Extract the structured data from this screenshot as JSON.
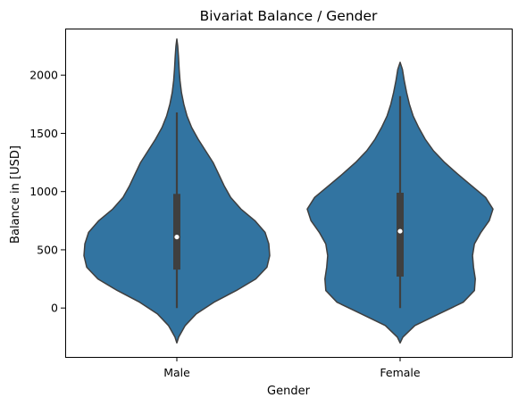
{
  "chart_data": {
    "type": "violin",
    "title": "Bivariat Balance / Gender",
    "xlabel": "Gender",
    "ylabel": "Balance in [USD]",
    "ylim": [
      -420,
      2400
    ],
    "yticks": [
      0,
      500,
      1000,
      1500,
      2000
    ],
    "grid": false,
    "categories": [
      "Male",
      "Female"
    ],
    "fill_color": "#3274a1",
    "edge_color": "#3f3f3f",
    "violins": [
      {
        "category": "Male",
        "min": 0,
        "q1": 330,
        "median": 610,
        "q3": 980,
        "max": 1680,
        "density_extent": [
          -300,
          2310
        ],
        "density_profile": [
          [
            -300,
            0.0
          ],
          [
            -250,
            0.02
          ],
          [
            -150,
            0.09
          ],
          [
            -50,
            0.21
          ],
          [
            50,
            0.4
          ],
          [
            150,
            0.64
          ],
          [
            250,
            0.85
          ],
          [
            350,
            0.97
          ],
          [
            450,
            1.0
          ],
          [
            550,
            0.99
          ],
          [
            650,
            0.95
          ],
          [
            750,
            0.84
          ],
          [
            850,
            0.69
          ],
          [
            950,
            0.58
          ],
          [
            1050,
            0.51
          ],
          [
            1150,
            0.45
          ],
          [
            1250,
            0.39
          ],
          [
            1350,
            0.31
          ],
          [
            1450,
            0.23
          ],
          [
            1550,
            0.16
          ],
          [
            1650,
            0.11
          ],
          [
            1750,
            0.075
          ],
          [
            1850,
            0.05
          ],
          [
            1950,
            0.035
          ],
          [
            2050,
            0.025
          ],
          [
            2150,
            0.018
          ],
          [
            2250,
            0.01
          ],
          [
            2310,
            0.0
          ]
        ]
      },
      {
        "category": "Female",
        "min": 0,
        "q1": 270,
        "median": 660,
        "q3": 990,
        "max": 1820,
        "density_extent": [
          -300,
          2110
        ],
        "density_profile": [
          [
            -300,
            0.0
          ],
          [
            -250,
            0.03
          ],
          [
            -150,
            0.16
          ],
          [
            -50,
            0.42
          ],
          [
            50,
            0.68
          ],
          [
            150,
            0.8
          ],
          [
            250,
            0.81
          ],
          [
            350,
            0.79
          ],
          [
            450,
            0.78
          ],
          [
            550,
            0.8
          ],
          [
            650,
            0.87
          ],
          [
            750,
            0.96
          ],
          [
            850,
            1.0
          ],
          [
            950,
            0.92
          ],
          [
            1050,
            0.77
          ],
          [
            1150,
            0.62
          ],
          [
            1250,
            0.48
          ],
          [
            1350,
            0.36
          ],
          [
            1450,
            0.27
          ],
          [
            1550,
            0.2
          ],
          [
            1650,
            0.14
          ],
          [
            1750,
            0.1
          ],
          [
            1850,
            0.07
          ],
          [
            1950,
            0.045
          ],
          [
            2050,
            0.025
          ],
          [
            2110,
            0.0
          ]
        ]
      }
    ]
  }
}
